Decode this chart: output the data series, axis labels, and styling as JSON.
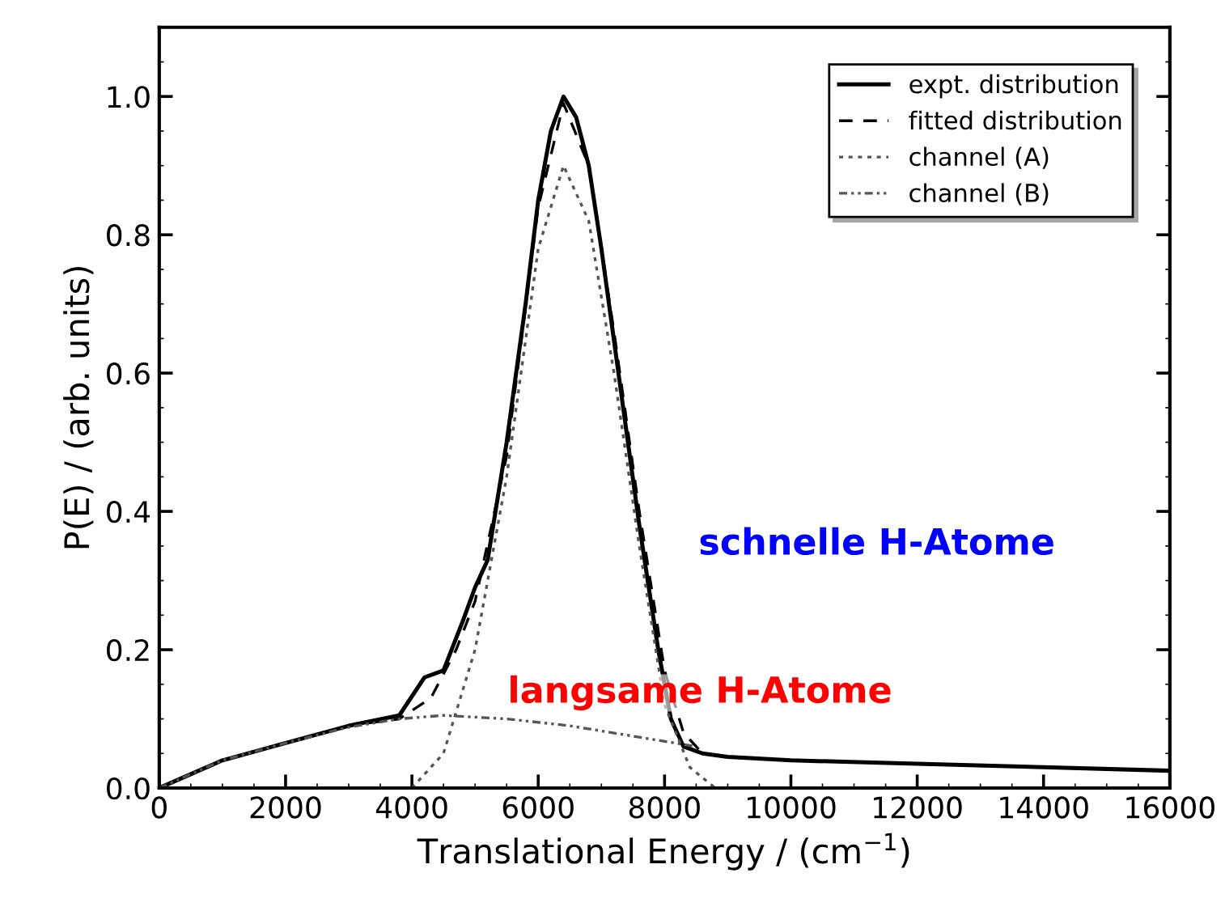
{
  "chart_data": {
    "type": "line",
    "xlabel": "Translational Energy / (cm$^{−1}$)",
    "ylabel": "P(E) / (arb. units)",
    "xlim": [
      0,
      16000
    ],
    "ylim": [
      0,
      1.1
    ],
    "xticks": [
      0,
      2000,
      4000,
      6000,
      8000,
      10000,
      12000,
      14000,
      16000
    ],
    "yticks": [
      {
        "value": 0,
        "label": "0.0"
      },
      0.2,
      0.4,
      0.6,
      0.8,
      {
        "value": 1,
        "label": "1.0"
      }
    ],
    "grid": false,
    "legend": "top right",
    "series": [
      {
        "name": "expt. distribution",
        "color": "#000000",
        "line_style": "solid",
        "x": [
          0,
          500,
          1000,
          2000,
          3000,
          3800,
          4200,
          4500,
          4800,
          5000,
          5200,
          5500,
          5800,
          6000,
          6200,
          6400,
          6600,
          6800,
          7000,
          7300,
          7600,
          7900,
          8100,
          8300,
          8600,
          9000,
          10000,
          12000,
          14000,
          16000
        ],
        "values": [
          0,
          0.02,
          0.04,
          0.065,
          0.09,
          0.105,
          0.16,
          0.17,
          0.24,
          0.29,
          0.33,
          0.5,
          0.7,
          0.85,
          0.95,
          1.0,
          0.97,
          0.9,
          0.78,
          0.58,
          0.38,
          0.2,
          0.1,
          0.06,
          0.05,
          0.045,
          0.04,
          0.035,
          0.03,
          0.025
        ]
      },
      {
        "name": "fitted distribution",
        "color": "#000000",
        "line_style": "dashed",
        "x": [
          0,
          1000,
          2000,
          3000,
          3800,
          4300,
          4700,
          5000,
          5500,
          6000,
          6400,
          6800,
          7200,
          7600,
          8000,
          8300,
          8600,
          9000,
          10000,
          12000,
          14000,
          16000
        ],
        "values": [
          0,
          0.04,
          0.065,
          0.09,
          0.1,
          0.13,
          0.2,
          0.27,
          0.48,
          0.84,
          0.99,
          0.9,
          0.66,
          0.4,
          0.17,
          0.08,
          0.05,
          0.045,
          0.04,
          0.035,
          0.03,
          0.025
        ]
      },
      {
        "name": "channel (A)",
        "color": "#555555",
        "line_style": "dotted",
        "x": [
          4000,
          4500,
          5000,
          5500,
          6000,
          6400,
          6800,
          7200,
          7600,
          8000,
          8400,
          8800
        ],
        "values": [
          0,
          0.05,
          0.2,
          0.45,
          0.78,
          0.9,
          0.82,
          0.6,
          0.35,
          0.12,
          0.03,
          0
        ]
      },
      {
        "name": "channel (B)",
        "color": "#555555",
        "line_style": "dashdot",
        "x": [
          0,
          1000,
          2000,
          3000,
          3800,
          4500,
          5500,
          6500,
          7500,
          8500
        ],
        "values": [
          0,
          0.04,
          0.065,
          0.088,
          0.1,
          0.105,
          0.1,
          0.09,
          0.075,
          0.06
        ]
      }
    ],
    "annotations": [
      "schnelle H-Atome",
      "langsame H-Atome"
    ]
  }
}
